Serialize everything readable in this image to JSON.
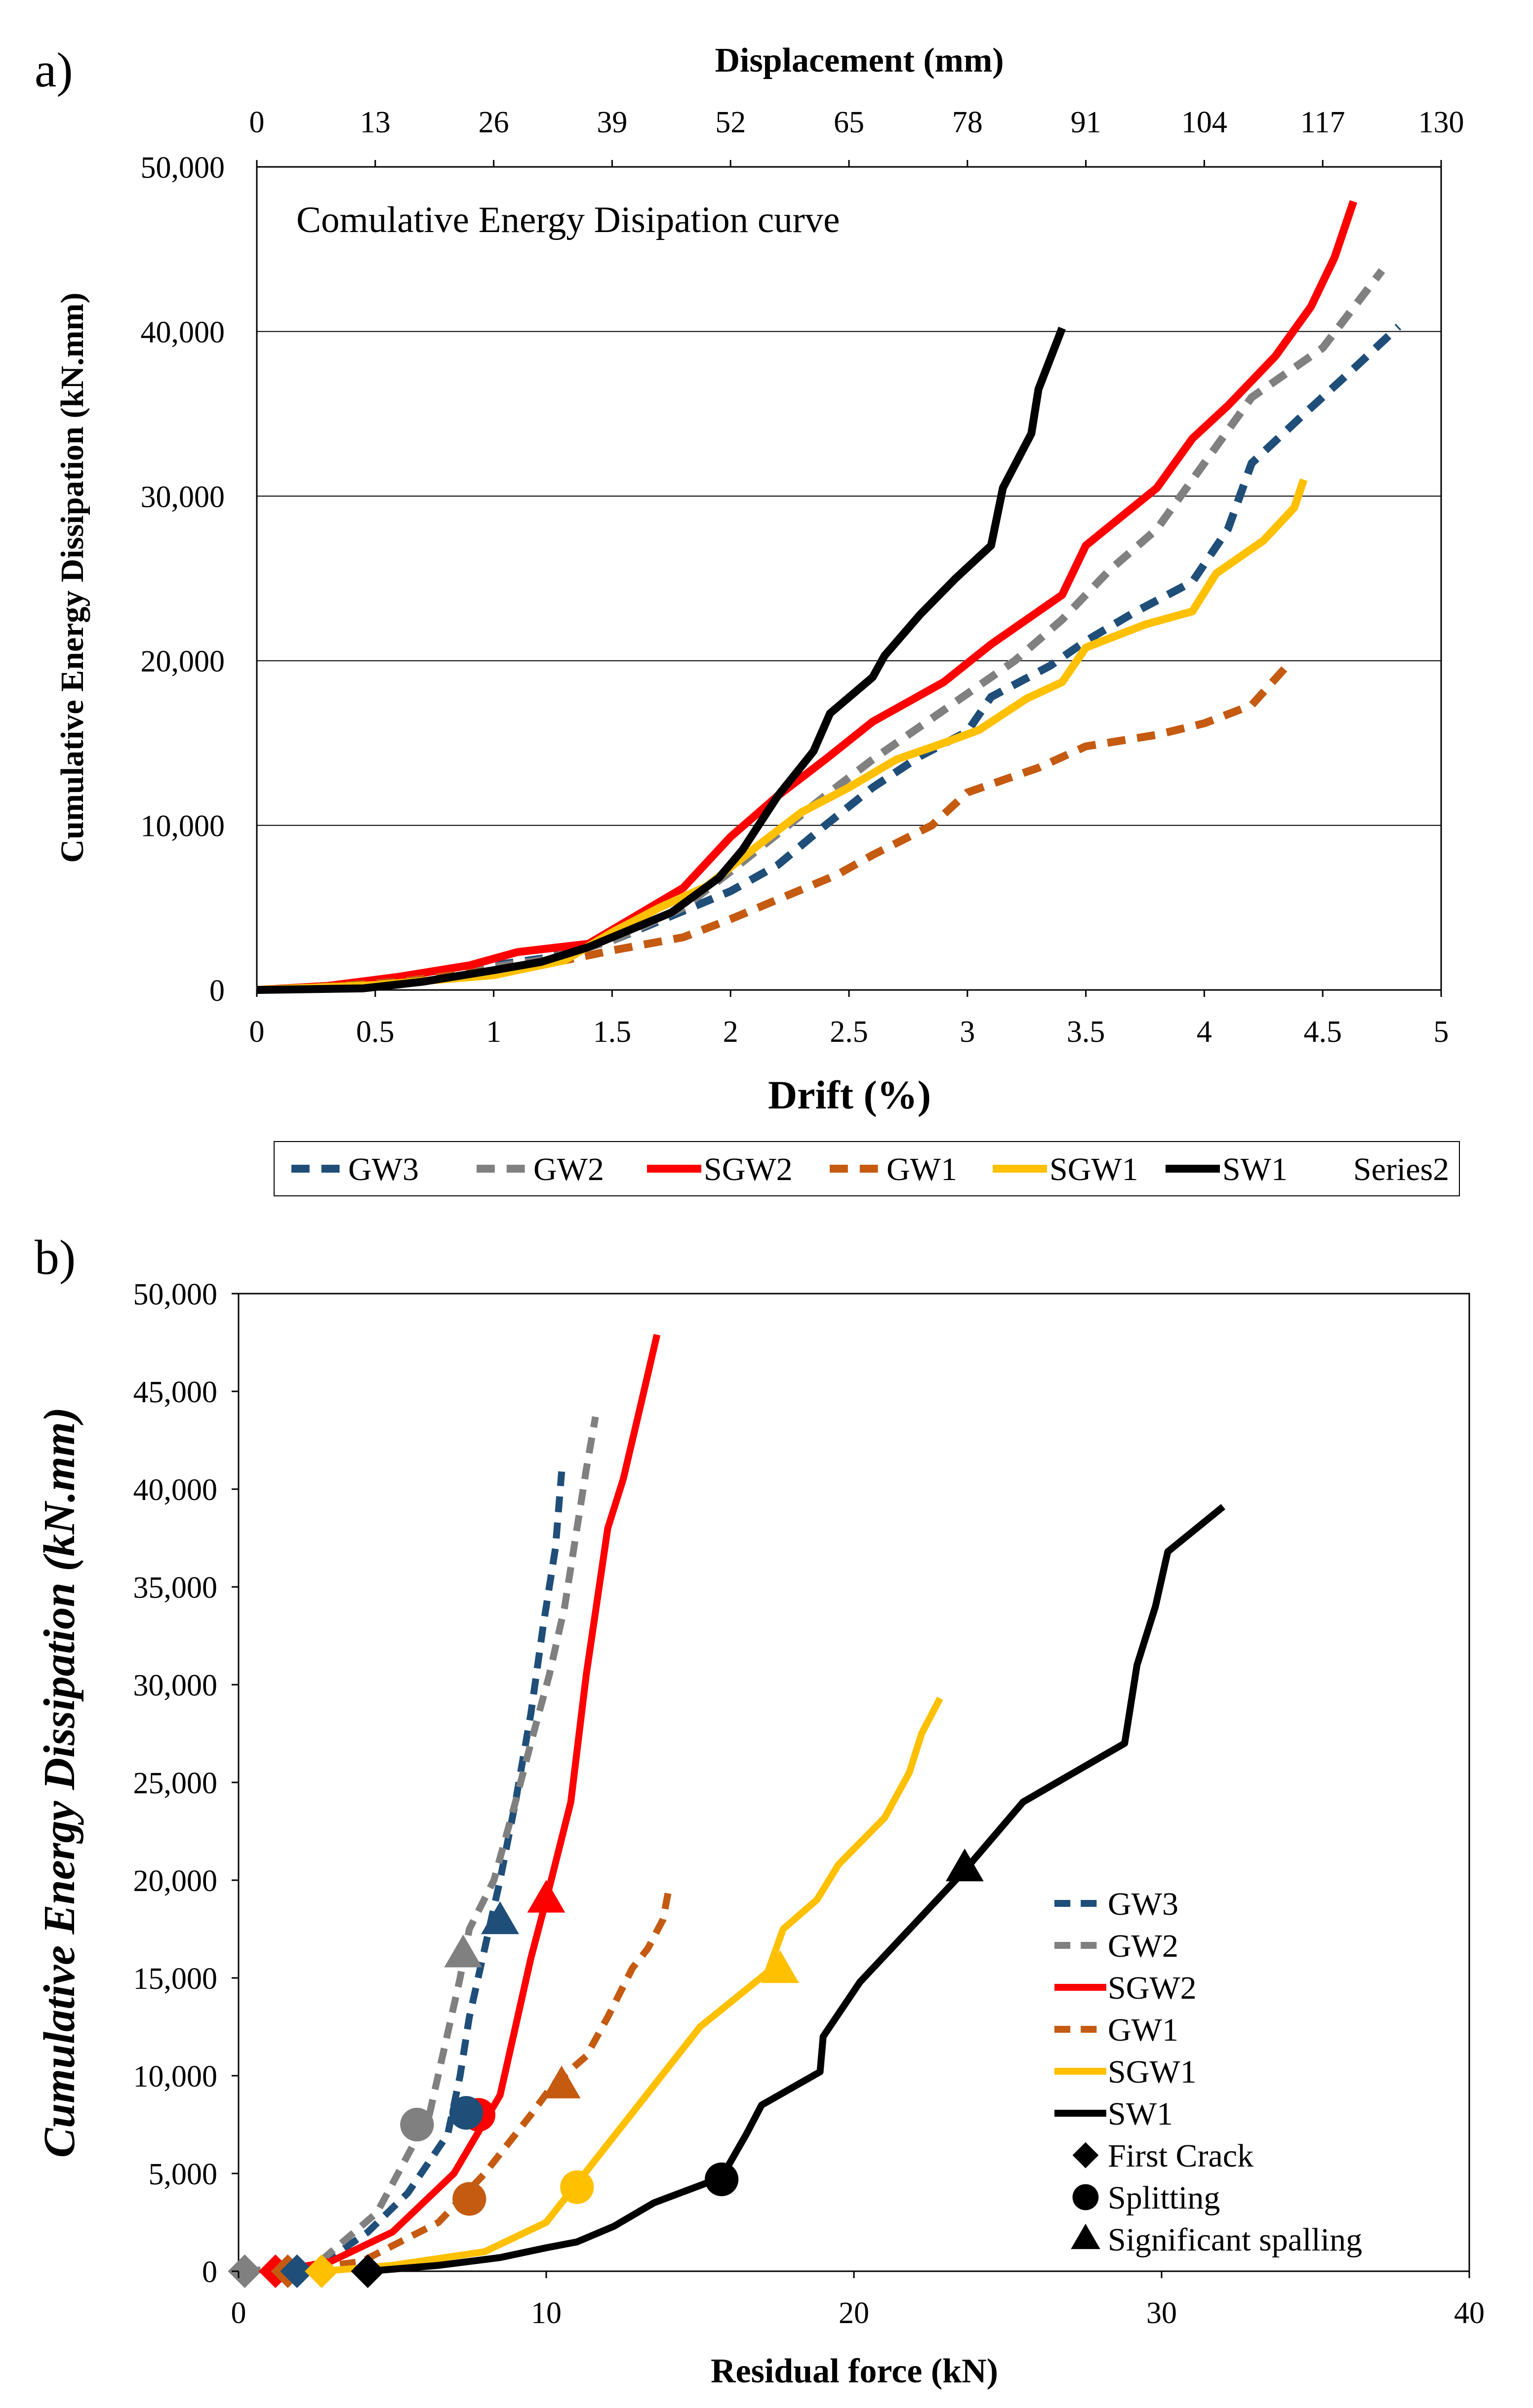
{
  "colors": {
    "GW3": "#1f4e79",
    "GW2": "#808080",
    "SGW2": "#ff0000",
    "GW1": "#c55a11",
    "SGW1": "#ffc000",
    "SW1": "#000000"
  },
  "chart_data": [
    {
      "type": "line",
      "panel_label": "a)",
      "title": "Comulative Energy Disipation curve",
      "xlabel": "Drift (%)",
      "ylabel": "Cumulative Energy Dissipation (kN.mm)",
      "x2label": "Displacement (mm)",
      "xlim": [
        0,
        5
      ],
      "ylim": [
        0,
        50000
      ],
      "x_ticks": [
        0,
        0.5,
        1,
        1.5,
        2,
        2.5,
        3,
        3.5,
        4,
        4.5,
        5
      ],
      "x_tick_labels": [
        "0",
        "0.5",
        "1",
        "1.5",
        "2",
        "2.5",
        "3",
        "3.5",
        "4",
        "4.5",
        "5"
      ],
      "y_ticks": [
        0,
        10000,
        20000,
        30000,
        40000,
        50000
      ],
      "y_tick_labels": [
        "0",
        "10,000",
        "20,000",
        "30,000",
        "40,000",
        "50,000"
      ],
      "x2_ticks": [
        0,
        13,
        26,
        39,
        52,
        65,
        78,
        91,
        104,
        117,
        130
      ],
      "x2_tick_labels": [
        "0",
        "13",
        "26",
        "39",
        "52",
        "65",
        "78",
        "91",
        "104",
        "117",
        "130"
      ],
      "x2lim": [
        0,
        130
      ],
      "legend": {
        "placement": "bottom",
        "entries": [
          {
            "key": "GW3",
            "label": "GW3"
          },
          {
            "key": "GW2",
            "label": "GW2"
          },
          {
            "key": "SGW2",
            "label": "SGW2"
          },
          {
            "key": "GW1",
            "label": "GW1"
          },
          {
            "key": "SGW1",
            "label": "SGW1"
          },
          {
            "key": "SW1",
            "label": "SW1"
          }
        ],
        "extra_label": "Series2"
      },
      "series": [
        {
          "name": "GW3",
          "dash": "dashed",
          "x": [
            0,
            0.3,
            0.6,
            0.9,
            1.2,
            1.5,
            1.8,
            2.0,
            2.2,
            2.4,
            2.6,
            2.8,
            3.0,
            3.1,
            3.35,
            3.5,
            3.7,
            3.95,
            4.1,
            4.2,
            4.4,
            4.65,
            4.82
          ],
          "y": [
            0,
            150,
            700,
            1300,
            1900,
            3000,
            4800,
            6000,
            7600,
            10000,
            12300,
            14200,
            15700,
            17800,
            19700,
            21200,
            22900,
            24800,
            28000,
            32000,
            34700,
            38000,
            40300
          ]
        },
        {
          "name": "GW2",
          "dash": "dashed",
          "x": [
            0,
            0.3,
            0.6,
            0.9,
            1.2,
            1.5,
            1.8,
            2.0,
            2.2,
            2.4,
            2.6,
            2.8,
            3.0,
            3.2,
            3.4,
            3.6,
            3.8,
            4.0,
            4.2,
            4.5,
            4.75
          ],
          "y": [
            0,
            150,
            600,
            1200,
            1800,
            3000,
            5000,
            7200,
            9500,
            11800,
            14000,
            16000,
            18000,
            20000,
            22500,
            25500,
            28000,
            32000,
            36000,
            39000,
            43700
          ]
        },
        {
          "name": "SGW2",
          "dash": "solid",
          "x": [
            0,
            0.3,
            0.6,
            0.9,
            1.1,
            1.4,
            1.6,
            1.8,
            2.0,
            2.2,
            2.4,
            2.6,
            2.9,
            3.1,
            3.4,
            3.5,
            3.8,
            3.95,
            4.1,
            4.3,
            4.45,
            4.55,
            4.63
          ],
          "y": [
            0,
            250,
            800,
            1500,
            2300,
            2800,
            4500,
            6200,
            9300,
            11800,
            14000,
            16300,
            18700,
            21000,
            24000,
            27000,
            30500,
            33500,
            35500,
            38500,
            41500,
            44500,
            47900
          ]
        },
        {
          "name": "GW1",
          "dash": "dashed",
          "x": [
            0,
            0.3,
            0.6,
            1.0,
            1.3,
            1.5,
            1.8,
            2.0,
            2.2,
            2.45,
            2.6,
            2.85,
            3.0,
            3.3,
            3.5,
            3.8,
            4.0,
            4.2,
            4.35
          ],
          "y": [
            0,
            200,
            500,
            1200,
            1800,
            2400,
            3200,
            4300,
            5500,
            7000,
            8200,
            10000,
            12000,
            13500,
            14800,
            15500,
            16200,
            17300,
            19700
          ]
        },
        {
          "name": "SGW1",
          "dash": "solid",
          "x": [
            0,
            0.5,
            1.0,
            1.3,
            1.5,
            1.7,
            1.9,
            2.1,
            2.3,
            2.5,
            2.7,
            2.9,
            3.05,
            3.25,
            3.4,
            3.5,
            3.75,
            3.95,
            4.05,
            4.25,
            4.38,
            4.42
          ],
          "y": [
            0,
            300,
            900,
            1800,
            3500,
            5000,
            6300,
            8600,
            10800,
            12300,
            14000,
            15000,
            15800,
            17700,
            18700,
            20800,
            22200,
            23000,
            25300,
            27300,
            29300,
            31000
          ]
        },
        {
          "name": "SW1",
          "dash": "solid",
          "x": [
            0,
            0.45,
            0.7,
            1.0,
            1.2,
            1.4,
            1.55,
            1.75,
            1.95,
            2.05,
            2.2,
            2.35,
            2.42,
            2.6,
            2.65,
            2.8,
            2.95,
            3.1,
            3.15,
            3.27,
            3.3,
            3.4
          ],
          "y": [
            0,
            100,
            500,
            1200,
            1700,
            2600,
            3500,
            4700,
            6800,
            8500,
            11800,
            14500,
            16800,
            19000,
            20300,
            22800,
            25000,
            27000,
            30500,
            33800,
            36500,
            40200
          ]
        }
      ]
    },
    {
      "type": "line",
      "panel_label": "b)",
      "xlabel": "Residual force (kN)",
      "ylabel": "Cumulative Energy Dissipation (kN.mm)",
      "xlim": [
        0,
        40
      ],
      "ylim": [
        0,
        50000
      ],
      "x_ticks": [
        0,
        10,
        20,
        30,
        40
      ],
      "x_tick_labels": [
        "0",
        "10",
        "20",
        "30",
        "40"
      ],
      "y_ticks": [
        0,
        5000,
        10000,
        15000,
        20000,
        25000,
        30000,
        35000,
        40000,
        45000,
        50000
      ],
      "y_tick_labels": [
        "0",
        "5,000",
        "10,000",
        "15,000",
        "20,000",
        "25,000",
        "30,000",
        "35,000",
        "40,000",
        "45,000",
        "50,000"
      ],
      "legend": {
        "placement": "bottom-right",
        "entries": [
          {
            "key": "GW3",
            "label": "GW3"
          },
          {
            "key": "GW2",
            "label": "GW2"
          },
          {
            "key": "SGW2",
            "label": "SGW2"
          },
          {
            "key": "GW1",
            "label": "GW1"
          },
          {
            "key": "SGW1",
            "label": "SGW1"
          },
          {
            "key": "SW1",
            "label": "SW1"
          }
        ],
        "marker_entries": [
          {
            "marker": "diamond",
            "label": "First Crack"
          },
          {
            "marker": "circle",
            "label": "Splitting"
          },
          {
            "marker": "triangle",
            "label": "Significant spalling"
          }
        ]
      },
      "series": [
        {
          "name": "GW3",
          "dash": "dashed",
          "x": [
            1.9,
            3.0,
            4.2,
            5.5,
            6.8,
            7.2,
            7.5,
            8.0,
            8.5,
            9.0,
            9.5,
            9.9,
            10.3,
            10.5
          ],
          "y": [
            0,
            700,
            2000,
            4000,
            7000,
            10000,
            13000,
            16500,
            20000,
            24000,
            28500,
            33000,
            37000,
            40900
          ]
        },
        {
          "name": "GW2",
          "dash": "dashed",
          "x": [
            0.2,
            2.5,
            4.5,
            6.2,
            7.2,
            7.5,
            8.3,
            9.0,
            9.5,
            10.1,
            10.6,
            11.0,
            11.3,
            11.6
          ],
          "y": [
            0,
            300,
            3000,
            8000,
            15000,
            17500,
            20000,
            24000,
            27000,
            30500,
            34000,
            38000,
            41000,
            43700
          ]
        },
        {
          "name": "SGW2",
          "dash": "solid",
          "x": [
            1.2,
            3.0,
            5.0,
            7.0,
            8.5,
            9.0,
            9.5,
            10.0,
            10.8,
            11.3,
            12.0,
            12.5,
            13.1,
            13.6
          ],
          "y": [
            0,
            500,
            2000,
            5000,
            9000,
            12500,
            16000,
            19000,
            24000,
            30500,
            38000,
            40500,
            44500,
            47900
          ]
        },
        {
          "name": "GW1",
          "dash": "dashed",
          "x": [
            1.6,
            4.0,
            6.5,
            8.0,
            9.5,
            10.2,
            11.3,
            12.0,
            12.8,
            13.3,
            13.8,
            14.0
          ],
          "y": [
            0,
            500,
            2500,
            5000,
            8000,
            9500,
            11000,
            13000,
            15500,
            16500,
            18000,
            19700
          ]
        },
        {
          "name": "SGW1",
          "dash": "solid",
          "x": [
            2.7,
            5.0,
            8.0,
            10.0,
            11.0,
            12.0,
            13.5,
            15.0,
            17.2,
            17.7,
            18.8,
            19.5,
            21.0,
            21.8,
            22.2,
            22.8
          ],
          "y": [
            0,
            300,
            1000,
            2500,
            4500,
            6500,
            9500,
            12500,
            15300,
            17500,
            19000,
            20800,
            23200,
            25500,
            27500,
            29300
          ]
        },
        {
          "name": "SW1",
          "dash": "solid",
          "x": [
            4.2,
            6.5,
            8.5,
            10.0,
            11.0,
            12.2,
            13.5,
            15.7,
            16.5,
            17.0,
            18.9,
            19.0,
            20.2,
            23.6,
            25.5,
            28.8,
            29.2,
            29.8,
            30.2,
            32.0
          ],
          "y": [
            0,
            300,
            700,
            1200,
            1500,
            2300,
            3500,
            4800,
            7000,
            8500,
            10200,
            12000,
            14800,
            20500,
            24000,
            27000,
            31000,
            34000,
            36800,
            39100
          ]
        }
      ],
      "events": [
        {
          "series": "GW2",
          "marker": "diamond",
          "x": 0.2,
          "y": 0
        },
        {
          "series": "SGW2",
          "marker": "diamond",
          "x": 1.2,
          "y": 0
        },
        {
          "series": "GW1",
          "marker": "diamond",
          "x": 1.6,
          "y": 0
        },
        {
          "series": "GW3",
          "marker": "diamond",
          "x": 1.9,
          "y": 0
        },
        {
          "series": "SGW1",
          "marker": "diamond",
          "x": 2.7,
          "y": 0
        },
        {
          "series": "SW1",
          "marker": "diamond",
          "x": 4.2,
          "y": 0
        },
        {
          "series": "GW2",
          "marker": "circle",
          "x": 5.8,
          "y": 7500
        },
        {
          "series": "SGW2",
          "marker": "circle",
          "x": 7.8,
          "y": 8000
        },
        {
          "series": "GW3",
          "marker": "circle",
          "x": 7.4,
          "y": 8100
        },
        {
          "series": "GW1",
          "marker": "circle",
          "x": 7.5,
          "y": 3700
        },
        {
          "series": "SGW1",
          "marker": "circle",
          "x": 11.0,
          "y": 4300
        },
        {
          "series": "SW1",
          "marker": "circle",
          "x": 15.7,
          "y": 4700
        },
        {
          "series": "GW2",
          "marker": "triangle",
          "x": 7.3,
          "y": 16200
        },
        {
          "series": "GW3",
          "marker": "triangle",
          "x": 8.5,
          "y": 17900
        },
        {
          "series": "SGW2",
          "marker": "triangle",
          "x": 10.0,
          "y": 19000
        },
        {
          "series": "GW1",
          "marker": "triangle",
          "x": 10.5,
          "y": 9500
        },
        {
          "series": "SGW1",
          "marker": "triangle",
          "x": 17.6,
          "y": 15400
        },
        {
          "series": "SW1",
          "marker": "triangle",
          "x": 23.6,
          "y": 20600
        }
      ]
    }
  ]
}
